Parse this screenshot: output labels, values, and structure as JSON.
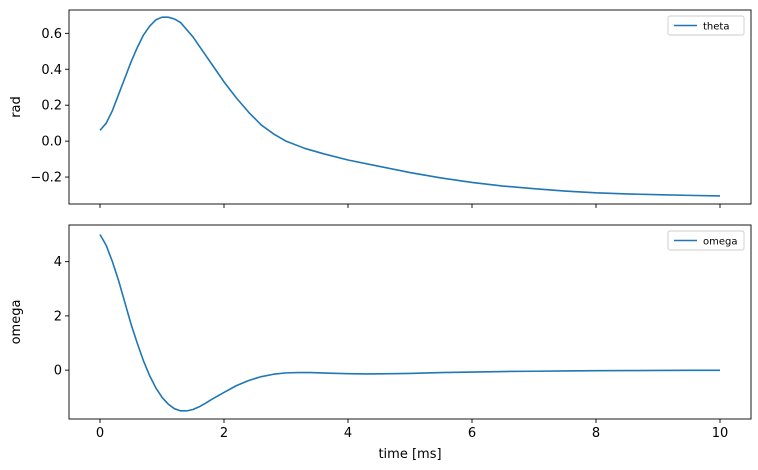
{
  "chart_data": [
    {
      "type": "line",
      "ylabel": "rad",
      "xlabel": "",
      "xlim": [
        -0.5,
        10.5
      ],
      "ylim": [
        -0.35,
        0.73
      ],
      "xticks": [
        0,
        2,
        4,
        6,
        8,
        10
      ],
      "xtick_labels_shown": false,
      "yticks": [
        -0.2,
        0.0,
        0.2,
        0.4,
        0.6
      ],
      "ytick_labels": [
        "−0.2",
        "0.0",
        "0.2",
        "0.4",
        "0.6"
      ],
      "legend_position": "top-right",
      "grid": false,
      "series": [
        {
          "name": "theta",
          "color": "#1f77b4",
          "x": [
            0,
            0.1,
            0.2,
            0.3,
            0.4,
            0.5,
            0.6,
            0.7,
            0.8,
            0.9,
            1.0,
            1.1,
            1.2,
            1.3,
            1.4,
            1.5,
            1.6,
            1.7,
            1.8,
            1.9,
            2.0,
            2.2,
            2.4,
            2.6,
            2.8,
            3.0,
            3.3,
            3.6,
            4.0,
            4.5,
            5.0,
            5.5,
            6.0,
            6.5,
            7.0,
            7.5,
            8.0,
            8.5,
            9.0,
            9.5,
            10.0
          ],
          "y": [
            0.06,
            0.1,
            0.17,
            0.26,
            0.35,
            0.44,
            0.52,
            0.59,
            0.64,
            0.675,
            0.69,
            0.69,
            0.68,
            0.66,
            0.62,
            0.58,
            0.53,
            0.48,
            0.43,
            0.38,
            0.33,
            0.24,
            0.16,
            0.09,
            0.04,
            0.0,
            -0.04,
            -0.07,
            -0.105,
            -0.14,
            -0.175,
            -0.205,
            -0.23,
            -0.25,
            -0.265,
            -0.278,
            -0.288,
            -0.294,
            -0.298,
            -0.302,
            -0.305
          ]
        }
      ]
    },
    {
      "type": "line",
      "xlabel": "time [ms]",
      "ylabel": "omega",
      "xlim": [
        -0.5,
        10.5
      ],
      "ylim": [
        -1.8,
        5.35
      ],
      "xticks": [
        0,
        2,
        4,
        6,
        8,
        10
      ],
      "xtick_labels": [
        "0",
        "2",
        "4",
        "6",
        "8",
        "10"
      ],
      "yticks": [
        0,
        2,
        4
      ],
      "ytick_labels": [
        "0",
        "2",
        "4"
      ],
      "legend_position": "top-right",
      "grid": false,
      "series": [
        {
          "name": "omega",
          "color": "#1f77b4",
          "x": [
            0,
            0.1,
            0.2,
            0.3,
            0.4,
            0.5,
            0.6,
            0.7,
            0.8,
            0.9,
            1.0,
            1.1,
            1.2,
            1.3,
            1.4,
            1.5,
            1.6,
            1.7,
            1.8,
            1.9,
            2.0,
            2.2,
            2.4,
            2.6,
            2.8,
            3.0,
            3.2,
            3.4,
            3.7,
            4.0,
            4.3,
            4.7,
            5.0,
            5.5,
            6.0,
            6.5,
            7.0,
            7.5,
            8.0,
            8.5,
            9.0,
            9.5,
            10.0
          ],
          "y": [
            5.0,
            4.6,
            4.0,
            3.3,
            2.5,
            1.7,
            1.0,
            0.35,
            -0.2,
            -0.65,
            -1.0,
            -1.25,
            -1.42,
            -1.5,
            -1.5,
            -1.45,
            -1.35,
            -1.22,
            -1.08,
            -0.95,
            -0.82,
            -0.57,
            -0.38,
            -0.24,
            -0.15,
            -0.1,
            -0.09,
            -0.09,
            -0.11,
            -0.13,
            -0.14,
            -0.13,
            -0.12,
            -0.09,
            -0.07,
            -0.05,
            -0.04,
            -0.03,
            -0.02,
            -0.015,
            -0.01,
            -0.005,
            -0.005
          ]
        }
      ]
    }
  ]
}
